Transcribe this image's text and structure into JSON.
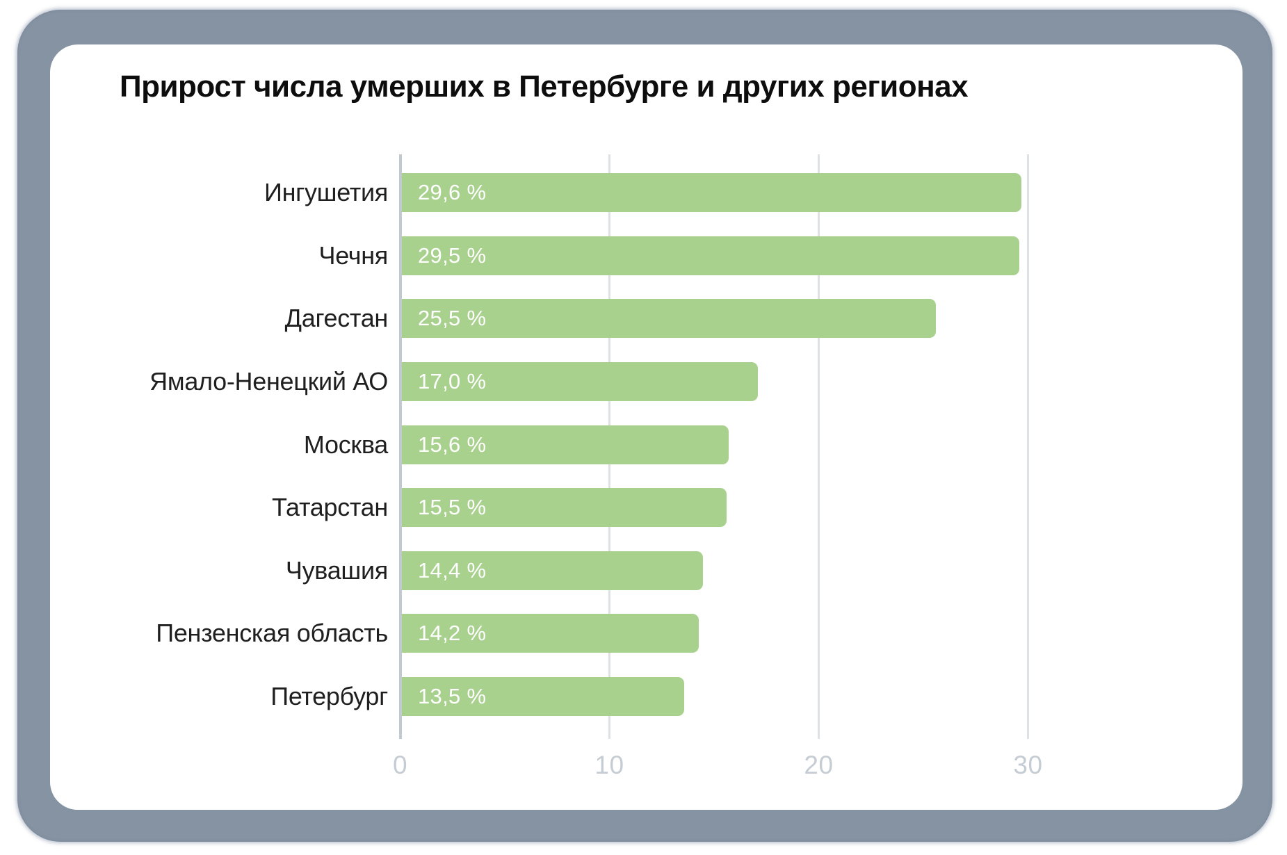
{
  "title": "Прирост числа умерших в Петербурге и других регионах",
  "colors": {
    "frame_border": "#8593a2",
    "card_background": "#ffffff",
    "bar_fill": "#a9d18e",
    "bar_value_text": "#ffffff",
    "axis_line": "#c2c9d0",
    "gridline": "#dfe2e5",
    "tick_label_text": "#c5ccd3",
    "category_text": "#1f1f1f",
    "title_text": "#0d0d0d"
  },
  "chart_data": {
    "type": "bar",
    "orientation": "horizontal",
    "title": "Прирост числа умерших в Петербурге и других регионах",
    "categories": [
      "Ингушетия",
      "Чечня",
      "Дагестан",
      "Ямало-Ненецкий АО",
      "Москва",
      "Татарстан",
      "Чувашия",
      "Пензенская область",
      "Петербург"
    ],
    "values": [
      29.6,
      29.5,
      25.5,
      17.0,
      15.6,
      15.5,
      14.4,
      14.2,
      13.5
    ],
    "value_labels": [
      "29,6 %",
      "29,5 %",
      "25,5 %",
      "17,0 %",
      "15,6 %",
      "15,5 %",
      "14,4 %",
      "14,2 %",
      "13,5 %"
    ],
    "xlabel": "",
    "ylabel": "",
    "x_ticks": [
      0,
      10,
      20,
      30
    ],
    "x_tick_labels": [
      "0",
      "10",
      "20",
      "30"
    ],
    "xlim": [
      0,
      37.5
    ],
    "grid": "vertical-only",
    "legend": "none",
    "value_labels_position": "inside-start"
  }
}
